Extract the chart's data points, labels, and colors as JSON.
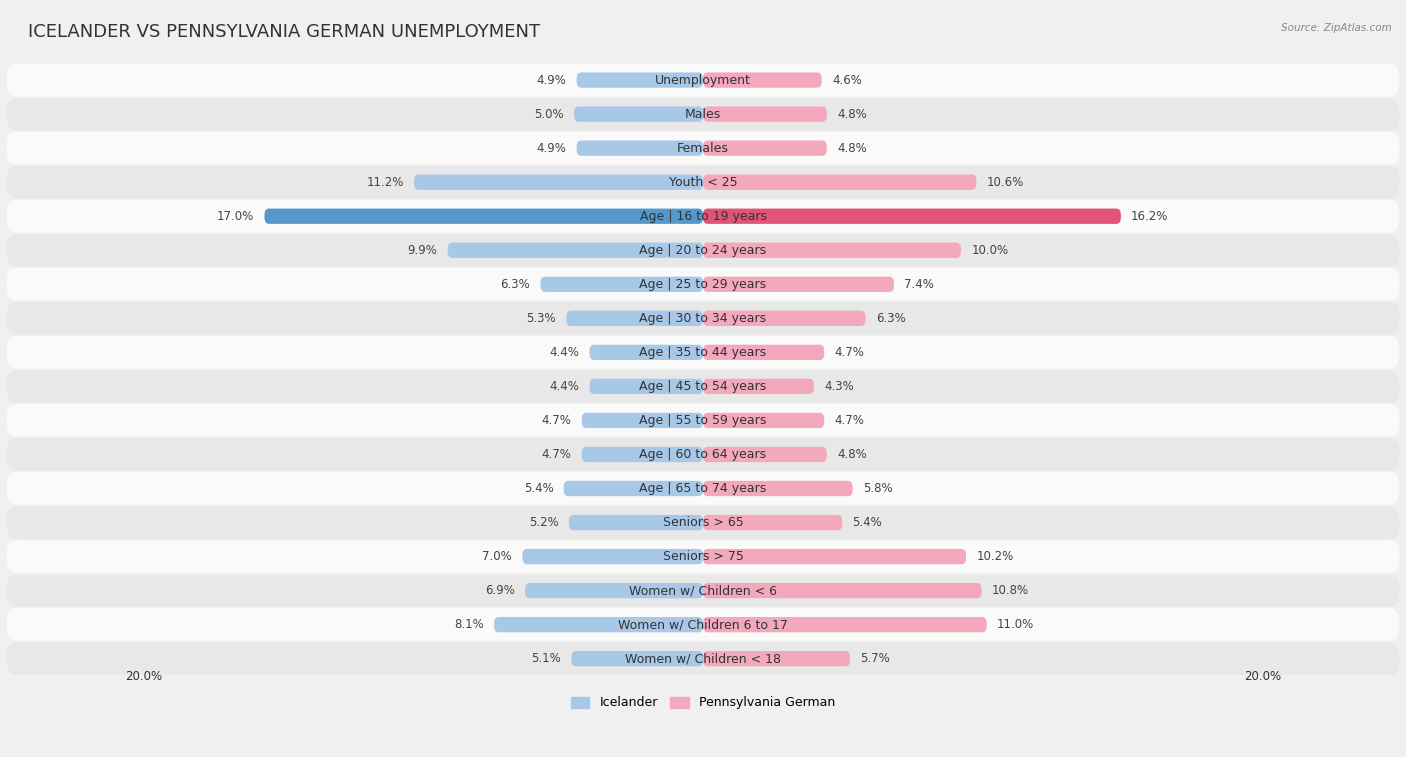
{
  "title": "ICELANDER VS PENNSYLVANIA GERMAN UNEMPLOYMENT",
  "source": "Source: ZipAtlas.com",
  "categories": [
    "Unemployment",
    "Males",
    "Females",
    "Youth < 25",
    "Age | 16 to 19 years",
    "Age | 20 to 24 years",
    "Age | 25 to 29 years",
    "Age | 30 to 34 years",
    "Age | 35 to 44 years",
    "Age | 45 to 54 years",
    "Age | 55 to 59 years",
    "Age | 60 to 64 years",
    "Age | 65 to 74 years",
    "Seniors > 65",
    "Seniors > 75",
    "Women w/ Children < 6",
    "Women w/ Children 6 to 17",
    "Women w/ Children < 18"
  ],
  "icelander": [
    4.9,
    5.0,
    4.9,
    11.2,
    17.0,
    9.9,
    6.3,
    5.3,
    4.4,
    4.4,
    4.7,
    4.7,
    5.4,
    5.2,
    7.0,
    6.9,
    8.1,
    5.1
  ],
  "penn_german": [
    4.6,
    4.8,
    4.8,
    10.6,
    16.2,
    10.0,
    7.4,
    6.3,
    4.7,
    4.3,
    4.7,
    4.8,
    5.8,
    5.4,
    10.2,
    10.8,
    11.0,
    5.7
  ],
  "icelander_color": "#a8c8e8",
  "penn_german_color": "#f4a8bc",
  "highlight_icelander_color": "#5599cc",
  "highlight_penn_german_color": "#e05575",
  "bg_color": "#f0f0f0",
  "row_color_light": "#fafafa",
  "row_color_dark": "#e8e8e8",
  "axis_max": 20.0,
  "legend_label_left": "Icelander",
  "legend_label_right": "Pennsylvania German",
  "title_fontsize": 13,
  "label_fontsize": 9,
  "value_fontsize": 8.5
}
